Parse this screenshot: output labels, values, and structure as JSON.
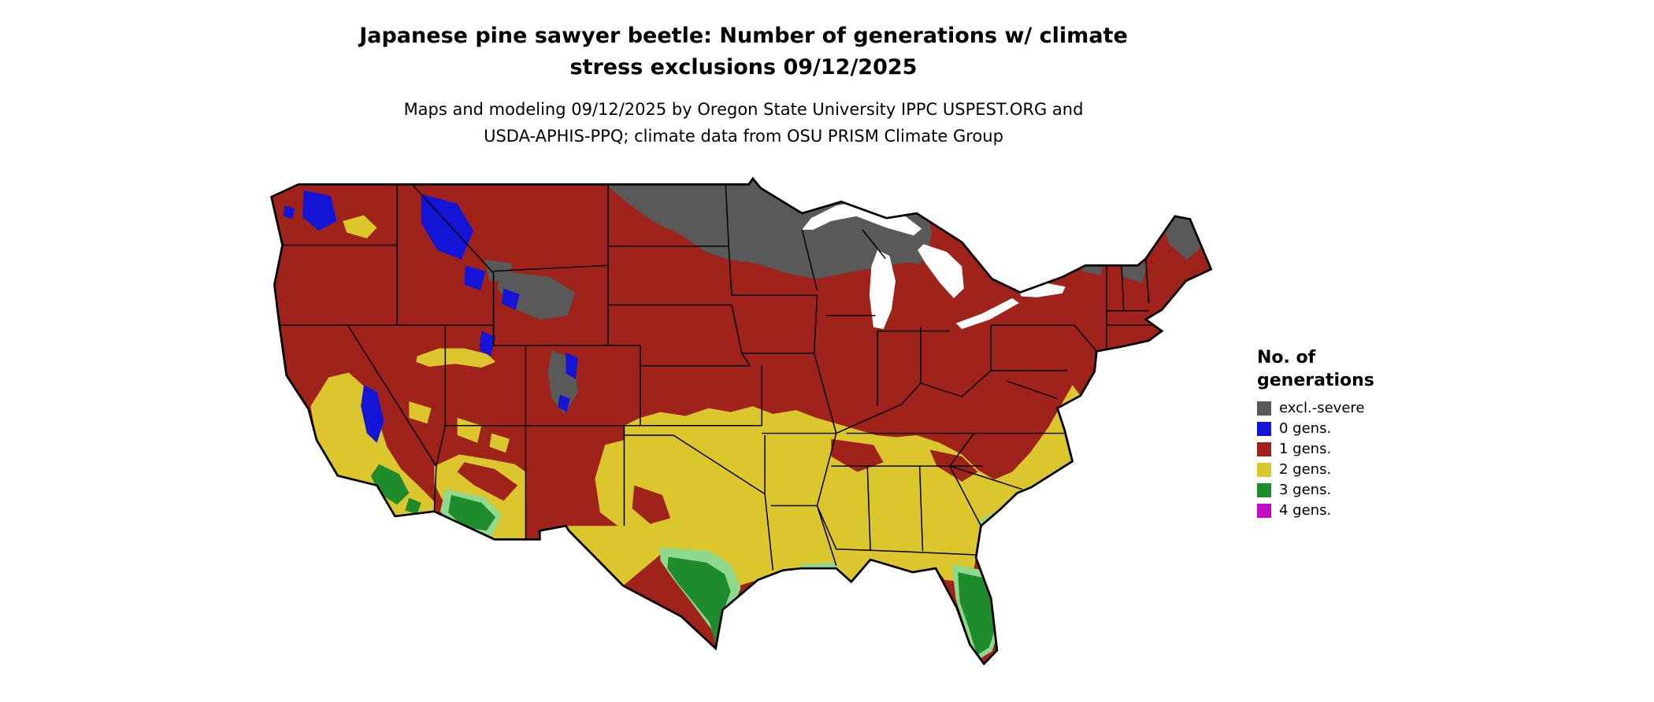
{
  "title": {
    "line1": "Japanese pine sawyer beetle: Number of generations w/ climate",
    "line2": "stress exclusions 09/12/2025"
  },
  "subtitle": {
    "line1": "Maps and modeling 09/12/2025 by Oregon State University IPPC USPEST.ORG and",
    "line2": "USDA-APHIS-PPQ; climate data from OSU PRISM Climate Group"
  },
  "legend": {
    "title_line1": "No. of",
    "title_line2": "generations",
    "items": [
      {
        "key": "excl",
        "label": "excl.-severe",
        "color": "#595959"
      },
      {
        "key": "g0",
        "label": "0 gens.",
        "color": "#1414d6"
      },
      {
        "key": "g1",
        "label": "1 gens.",
        "color": "#9f221b"
      },
      {
        "key": "g2",
        "label": "2 gens.",
        "color": "#dcc62e"
      },
      {
        "key": "g3",
        "label": "3 gens.",
        "color": "#1e8b2d"
      },
      {
        "key": "g4",
        "label": "4 gens.",
        "color": "#c40ac4"
      }
    ]
  },
  "colors": {
    "background": "#ffffff",
    "water": "#ffffff",
    "state_border": "#000000",
    "outline": "#000000",
    "light_green": "#8fd98f"
  }
}
